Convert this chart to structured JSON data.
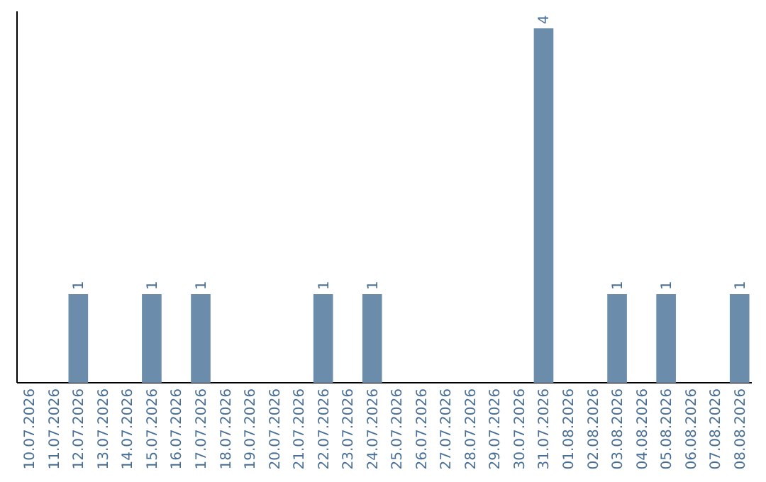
{
  "chart_data": {
    "type": "bar",
    "categories": [
      "10.07.2026",
      "11.07.2026",
      "12.07.2026",
      "13.07.2026",
      "14.07.2026",
      "15.07.2026",
      "16.07.2026",
      "17.07.2026",
      "18.07.2026",
      "19.07.2026",
      "20.07.2026",
      "21.07.2026",
      "22.07.2026",
      "23.07.2026",
      "24.07.2026",
      "25.07.2026",
      "26.07.2026",
      "27.07.2026",
      "28.07.2026",
      "29.07.2026",
      "30.07.2026",
      "31.07.2026",
      "01.08.2026",
      "02.08.2026",
      "03.08.2026",
      "04.08.2026",
      "05.08.2026",
      "06.08.2026",
      "07.08.2026",
      "08.08.2026"
    ],
    "values": [
      null,
      null,
      1,
      null,
      null,
      1,
      null,
      1,
      null,
      null,
      null,
      null,
      1,
      null,
      1,
      null,
      null,
      null,
      null,
      null,
      null,
      4,
      null,
      null,
      1,
      null,
      1,
      null,
      null,
      1
    ],
    "color": "#6b8cab",
    "ylim": [
      0,
      4
    ],
    "data_labels": true,
    "tick_labels": "x"
  }
}
